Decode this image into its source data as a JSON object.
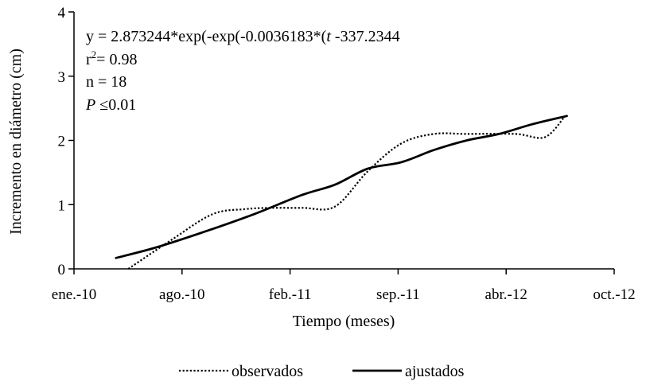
{
  "chart_data": {
    "type": "line",
    "xlabel": "Tiempo (meses)",
    "ylabel": "Incremento en diámetro (cm)",
    "xlim": [
      "2010-01-01",
      "2012-10-01"
    ],
    "ylim": [
      0,
      4
    ],
    "x_ticks": [
      "ene.-10",
      "ago.-10",
      "feb.-11",
      "sep.-11",
      "abr.-12",
      "oct.-12"
    ],
    "y_ticks": [
      "0",
      "1",
      "2",
      "3",
      "4"
    ],
    "grid": false,
    "legend_position": "bottom",
    "annotations": [
      {
        "prefix": "y = 2.873244*exp(-exp(-0.0036183*(",
        "italic": "t",
        "suffix": " -337.2344"
      },
      {
        "prefix": "r",
        "sup": "2",
        "suffix": "= 0.98"
      },
      {
        "prefix": "n = 18"
      },
      {
        "italic": "P",
        "suffix": " ≤0.01"
      }
    ],
    "series": [
      {
        "name": "observados",
        "style": "dotted",
        "x": [
          "2010-04-12",
          "2010-07-01",
          "2010-09-15",
          "2010-11-15",
          "2011-01-01",
          "2011-03-01",
          "2011-05-01",
          "2011-07-01",
          "2011-09-01",
          "2011-11-01",
          "2012-01-01",
          "2012-04-01",
          "2012-05-25",
          "2012-07-01"
        ],
        "y": [
          0.0,
          0.45,
          0.85,
          0.93,
          0.95,
          0.95,
          0.97,
          1.52,
          1.95,
          2.1,
          2.1,
          2.1,
          2.05,
          2.37
        ]
      },
      {
        "name": "ajustados",
        "style": "solid",
        "x": [
          "2010-03-20",
          "2010-06-01",
          "2010-09-01",
          "2010-12-01",
          "2011-03-01",
          "2011-05-01",
          "2011-07-01",
          "2011-09-01",
          "2011-11-01",
          "2012-01-01",
          "2012-03-01",
          "2012-05-01",
          "2012-07-05"
        ],
        "y": [
          0.17,
          0.33,
          0.58,
          0.85,
          1.15,
          1.31,
          1.56,
          1.66,
          1.85,
          2.0,
          2.1,
          2.25,
          2.38
        ]
      }
    ]
  }
}
